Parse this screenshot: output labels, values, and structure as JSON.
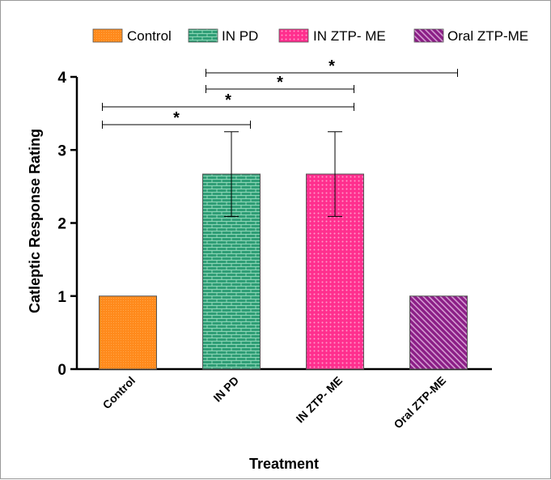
{
  "chart_data": {
    "type": "bar",
    "categories": [
      "Control",
      "IN PD",
      "IN ZTP- ME",
      "Oral ZTP-ME"
    ],
    "values": [
      1,
      2.67,
      2.67,
      1
    ],
    "errors": [
      0,
      0.58,
      0.58,
      0
    ],
    "xlabel": "Treatment",
    "ylabel": "Catleptic Response Rating",
    "ylim": [
      0,
      4
    ],
    "yticks": [
      "0",
      "1",
      "2",
      "3",
      "4"
    ],
    "legend": {
      "position": "top",
      "entries": [
        "Control",
        "IN PD",
        "IN ZTP- ME",
        "Oral ZTP-ME"
      ]
    },
    "colors": [
      "#ff8a1c",
      "#2f9e76",
      "#ff2f8e",
      "#8b1e86"
    ],
    "significance": [
      {
        "from": 0,
        "to": 1,
        "label": "*"
      },
      {
        "from": 0,
        "to": 2,
        "label": "*"
      },
      {
        "from": 1,
        "to": 2,
        "label": "*"
      },
      {
        "from": 1,
        "to": 3,
        "label": "*"
      }
    ],
    "grid": false
  }
}
